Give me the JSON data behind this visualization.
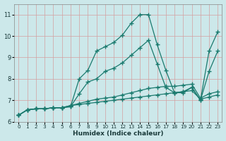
{
  "xlabel": "Humidex (Indice chaleur)",
  "bg_color": "#cce8ea",
  "grid_color": "#b8d8da",
  "line_color": "#1a7a6e",
  "xlim": [
    -0.5,
    23.5
  ],
  "ylim": [
    6.0,
    11.5
  ],
  "yticks": [
    6,
    7,
    8,
    9,
    10,
    11
  ],
  "xticks": [
    0,
    1,
    2,
    3,
    4,
    5,
    6,
    7,
    8,
    9,
    10,
    11,
    12,
    13,
    14,
    15,
    16,
    17,
    18,
    19,
    20,
    21,
    22,
    23
  ],
  "series": [
    [
      6.3,
      6.55,
      6.6,
      6.6,
      6.65,
      6.65,
      6.7,
      8.0,
      8.4,
      9.3,
      9.5,
      9.7,
      10.05,
      10.6,
      11.0,
      11.0,
      9.6,
      8.4,
      7.35,
      7.35,
      7.6,
      7.0,
      9.3,
      10.2
    ],
    [
      6.3,
      6.55,
      6.6,
      6.6,
      6.65,
      6.65,
      6.7,
      7.3,
      7.85,
      8.0,
      8.35,
      8.5,
      8.75,
      9.1,
      9.45,
      9.8,
      8.7,
      7.6,
      7.35,
      7.4,
      7.6,
      7.0,
      8.35,
      9.3
    ],
    [
      6.3,
      6.55,
      6.6,
      6.6,
      6.65,
      6.65,
      6.75,
      6.85,
      6.95,
      7.05,
      7.1,
      7.15,
      7.25,
      7.35,
      7.45,
      7.55,
      7.6,
      7.65,
      7.65,
      7.7,
      7.75,
      7.1,
      7.3,
      7.4
    ],
    [
      6.3,
      6.55,
      6.6,
      6.6,
      6.65,
      6.65,
      6.75,
      6.8,
      6.85,
      6.9,
      6.95,
      7.0,
      7.05,
      7.1,
      7.15,
      7.2,
      7.25,
      7.3,
      7.35,
      7.4,
      7.45,
      7.05,
      7.15,
      7.25
    ]
  ]
}
